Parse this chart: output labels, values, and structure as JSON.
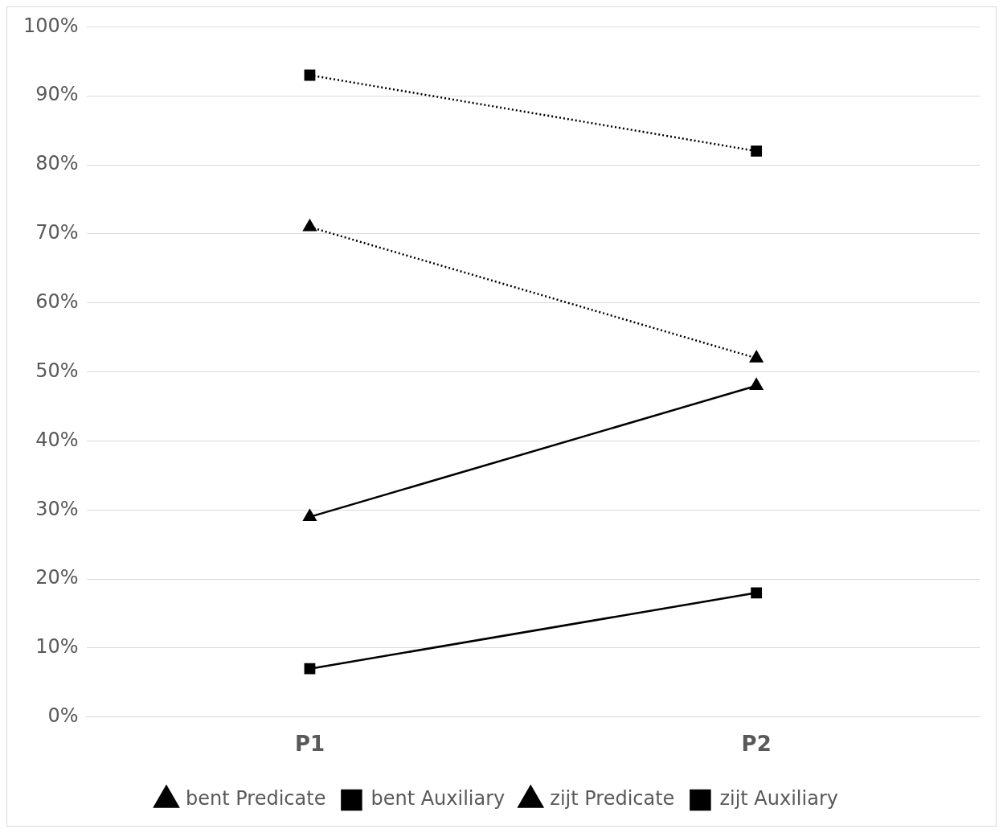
{
  "chart_data": {
    "type": "line",
    "categories": [
      "P1",
      "P2"
    ],
    "series": [
      {
        "name": "bent Predicate",
        "color": "#000000",
        "values": [
          29,
          48
        ],
        "marker": "triangle",
        "line_style": "solid"
      },
      {
        "name": "bent Auxiliary",
        "color": "#000000",
        "values": [
          7,
          18
        ],
        "marker": "square",
        "line_style": "solid"
      },
      {
        "name": "zijt Predicate",
        "color": "#000000",
        "values": [
          71,
          52
        ],
        "marker": "triangle",
        "line_style": "dotted"
      },
      {
        "name": "zijt Auxiliary",
        "color": "#000000",
        "values": [
          93,
          82
        ],
        "marker": "square",
        "line_style": "dotted"
      }
    ],
    "ylim": [
      0,
      100
    ],
    "yticks": [
      {
        "value": 0,
        "label": "0%"
      },
      {
        "value": 10,
        "label": "10%"
      },
      {
        "value": 20,
        "label": "20%"
      },
      {
        "value": 30,
        "label": "30%"
      },
      {
        "value": 40,
        "label": "40%"
      },
      {
        "value": 50,
        "label": "50%"
      },
      {
        "value": 60,
        "label": "60%"
      },
      {
        "value": 70,
        "label": "70%"
      },
      {
        "value": 80,
        "label": "80%"
      },
      {
        "value": 90,
        "label": "90%"
      },
      {
        "value": 100,
        "label": "100%"
      }
    ],
    "grid": "y",
    "legend": "bottom"
  }
}
